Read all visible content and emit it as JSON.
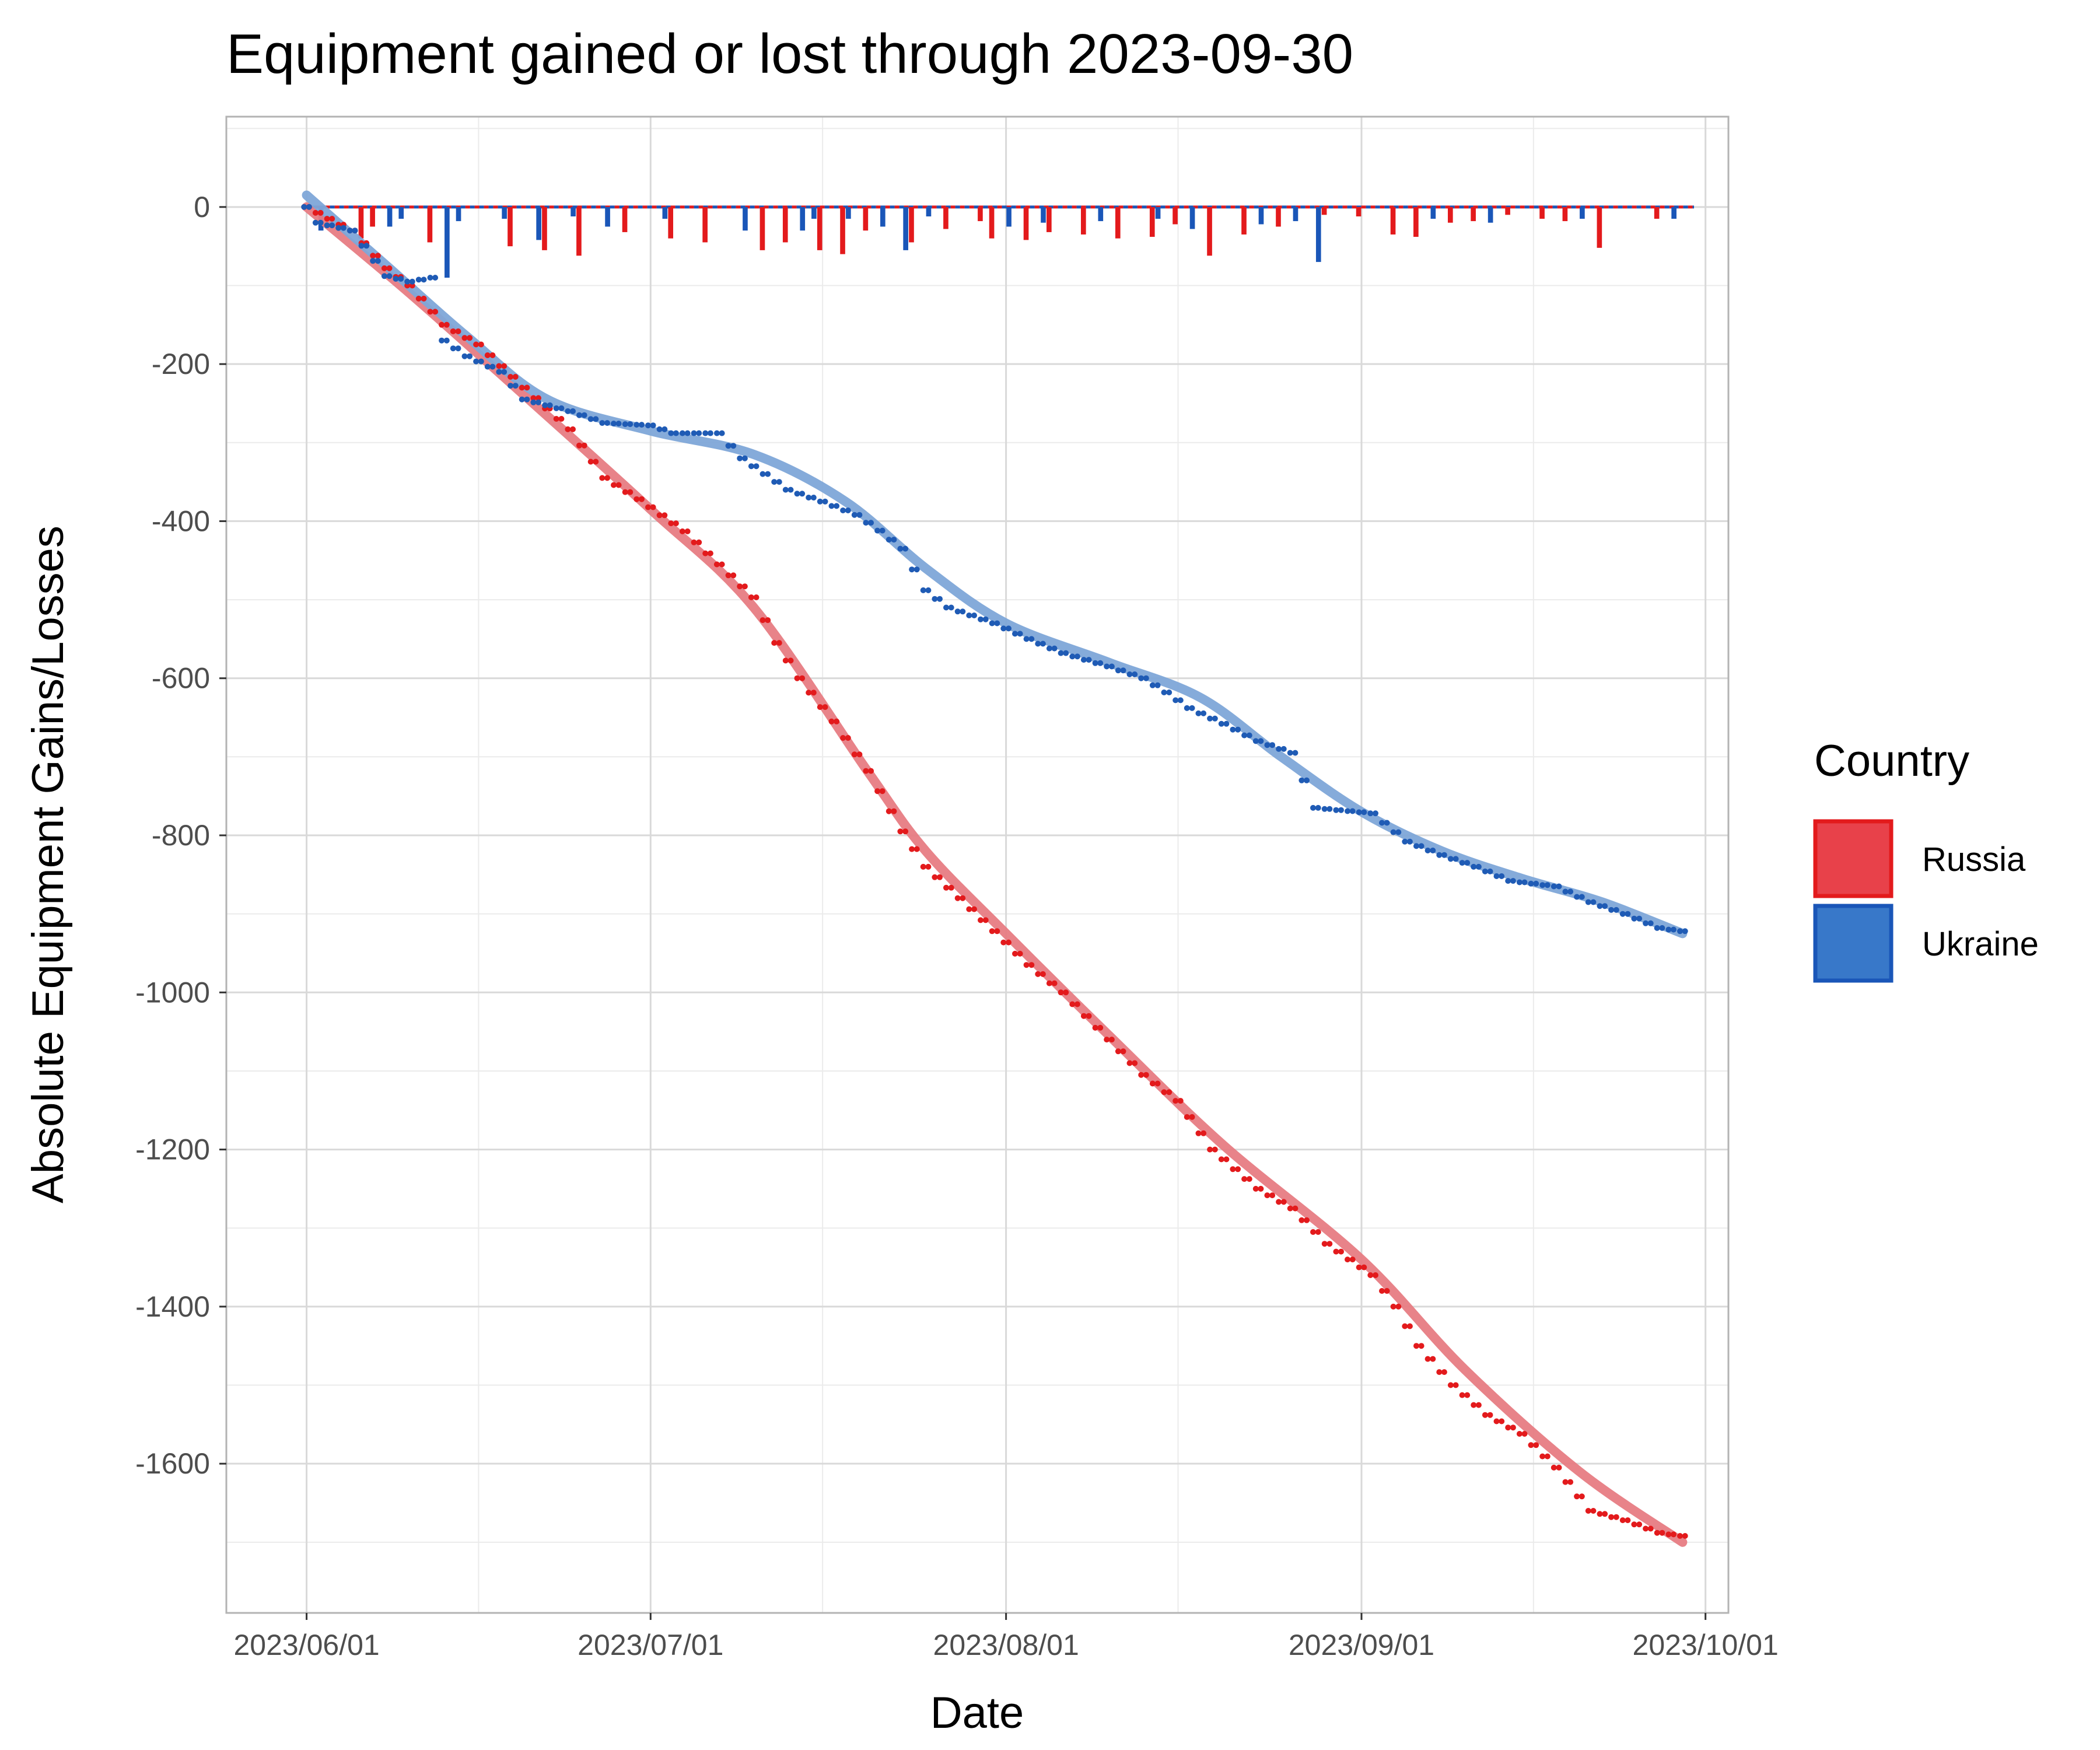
{
  "chart_data": {
    "type": "line",
    "title": "Equipment gained or lost through 2023-09-30",
    "xlabel": "Date",
    "ylabel": "Absolute Equipment Gains/Losses",
    "x_range": [
      "2023-05-25",
      "2023-10-03"
    ],
    "x_ticks": [
      "2023/06/01",
      "2023/07/01",
      "2023/08/01",
      "2023/09/01",
      "2023/10/01"
    ],
    "ylim": [
      -1790,
      115
    ],
    "y_ticks": [
      0,
      -200,
      -400,
      -600,
      -800,
      -1000,
      -1200,
      -1400,
      -1600
    ],
    "grid": true,
    "legend": {
      "title": "Country",
      "placement": "right",
      "entries": [
        {
          "name": "Russia",
          "color": "#e8414a"
        },
        {
          "name": "Ukraine",
          "color": "#3878c9"
        }
      ]
    },
    "colors": {
      "russia_point": "#e31a1c",
      "russia_bar": "#e31a1c",
      "russia_smooth": "#e77c83",
      "ukraine_point": "#1f5bb5",
      "ukraine_bar": "#1a56b8",
      "ukraine_smooth": "#7ea7d8"
    },
    "series": [
      {
        "name": "Russia",
        "cumulative_keypoints": [
          [
            "2023-06-01",
            0
          ],
          [
            "2023-06-05",
            -30
          ],
          [
            "2023-06-08",
            -78
          ],
          [
            "2023-06-10",
            -100
          ],
          [
            "2023-06-13",
            -150
          ],
          [
            "2023-06-16",
            -175
          ],
          [
            "2023-06-20",
            -230
          ],
          [
            "2023-06-24",
            -283
          ],
          [
            "2023-06-27",
            -345
          ],
          [
            "2023-06-30",
            -372
          ],
          [
            "2023-07-04",
            -413
          ],
          [
            "2023-07-07",
            -455
          ],
          [
            "2023-07-10",
            -497
          ],
          [
            "2023-07-12",
            -555
          ],
          [
            "2023-07-14",
            -600
          ],
          [
            "2023-07-17",
            -655
          ],
          [
            "2023-07-20",
            -718
          ],
          [
            "2023-07-23",
            -795
          ],
          [
            "2023-07-25",
            -840
          ],
          [
            "2023-07-28",
            -880
          ],
          [
            "2023-07-31",
            -922
          ],
          [
            "2023-08-03",
            -965
          ],
          [
            "2023-08-06",
            -1000
          ],
          [
            "2023-08-10",
            -1060
          ],
          [
            "2023-08-13",
            -1105
          ],
          [
            "2023-08-16",
            -1138
          ],
          [
            "2023-08-19",
            -1200
          ],
          [
            "2023-08-23",
            -1250
          ],
          [
            "2023-08-26",
            -1275
          ],
          [
            "2023-08-29",
            -1320
          ],
          [
            "2023-09-02",
            -1360
          ],
          [
            "2023-09-04",
            -1400
          ],
          [
            "2023-09-06",
            -1450
          ],
          [
            "2023-09-09",
            -1500
          ],
          [
            "2023-09-12",
            -1538
          ],
          [
            "2023-09-15",
            -1562
          ],
          [
            "2023-09-18",
            -1605
          ],
          [
            "2023-09-21",
            -1660
          ],
          [
            "2023-09-24",
            -1672
          ],
          [
            "2023-09-27",
            -1688
          ],
          [
            "2023-09-29",
            -1692
          ]
        ],
        "smooth_keypoints": [
          [
            "2023-06-01",
            0
          ],
          [
            "2023-06-10",
            -110
          ],
          [
            "2023-06-20",
            -240
          ],
          [
            "2023-07-01",
            -385
          ],
          [
            "2023-07-10",
            -510
          ],
          [
            "2023-07-20",
            -720
          ],
          [
            "2023-07-25",
            -820
          ],
          [
            "2023-08-01",
            -925
          ],
          [
            "2023-08-10",
            -1055
          ],
          [
            "2023-08-20",
            -1195
          ],
          [
            "2023-09-01",
            -1340
          ],
          [
            "2023-09-10",
            -1480
          ],
          [
            "2023-09-20",
            -1610
          ],
          [
            "2023-09-29",
            -1700
          ]
        ],
        "daily_changes": [
          [
            "2023-06-06",
            -40
          ],
          [
            "2023-06-07",
            -25
          ],
          [
            "2023-06-12",
            -45
          ],
          [
            "2023-06-19",
            -50
          ],
          [
            "2023-06-22",
            -55
          ],
          [
            "2023-06-25",
            -62
          ],
          [
            "2023-06-29",
            -32
          ],
          [
            "2023-07-03",
            -40
          ],
          [
            "2023-07-06",
            -45
          ],
          [
            "2023-07-11",
            -55
          ],
          [
            "2023-07-13",
            -45
          ],
          [
            "2023-07-16",
            -55
          ],
          [
            "2023-07-18",
            -60
          ],
          [
            "2023-07-20",
            -30
          ],
          [
            "2023-07-24",
            -45
          ],
          [
            "2023-07-27",
            -28
          ],
          [
            "2023-07-30",
            -18
          ],
          [
            "2023-07-31",
            -40
          ],
          [
            "2023-08-03",
            -42
          ],
          [
            "2023-08-05",
            -32
          ],
          [
            "2023-08-08",
            -35
          ],
          [
            "2023-08-11",
            -40
          ],
          [
            "2023-08-14",
            -38
          ],
          [
            "2023-08-16",
            -22
          ],
          [
            "2023-08-19",
            -62
          ],
          [
            "2023-08-22",
            -35
          ],
          [
            "2023-08-25",
            -25
          ],
          [
            "2023-08-29",
            -10
          ],
          [
            "2023-09-01",
            -12
          ],
          [
            "2023-09-04",
            -35
          ],
          [
            "2023-09-06",
            -38
          ],
          [
            "2023-09-09",
            -20
          ],
          [
            "2023-09-11",
            -18
          ],
          [
            "2023-09-14",
            -10
          ],
          [
            "2023-09-17",
            -15
          ],
          [
            "2023-09-19",
            -18
          ],
          [
            "2023-09-22",
            -52
          ],
          [
            "2023-09-27",
            -15
          ]
        ]
      },
      {
        "name": "Ukraine",
        "cumulative_keypoints": [
          [
            "2023-06-01",
            0
          ],
          [
            "2023-06-02",
            -20
          ],
          [
            "2023-06-05",
            -30
          ],
          [
            "2023-06-08",
            -88
          ],
          [
            "2023-06-10",
            -95
          ],
          [
            "2023-06-12",
            -90
          ],
          [
            "2023-06-13",
            -170
          ],
          [
            "2023-06-15",
            -190
          ],
          [
            "2023-06-18",
            -210
          ],
          [
            "2023-06-20",
            -245
          ],
          [
            "2023-06-24",
            -260
          ],
          [
            "2023-06-27",
            -275
          ],
          [
            "2023-07-01",
            -278
          ],
          [
            "2023-07-03",
            -288
          ],
          [
            "2023-07-07",
            -288
          ],
          [
            "2023-07-09",
            -320
          ],
          [
            "2023-07-11",
            -340
          ],
          [
            "2023-07-13",
            -360
          ],
          [
            "2023-07-16",
            -375
          ],
          [
            "2023-07-19",
            -392
          ],
          [
            "2023-07-21",
            -412
          ],
          [
            "2023-07-23",
            -435
          ],
          [
            "2023-07-25",
            -488
          ],
          [
            "2023-07-27",
            -510
          ],
          [
            "2023-07-31",
            -530
          ],
          [
            "2023-08-03",
            -550
          ],
          [
            "2023-08-06",
            -568
          ],
          [
            "2023-08-10",
            -585
          ],
          [
            "2023-08-13",
            -600
          ],
          [
            "2023-08-15",
            -618
          ],
          [
            "2023-08-17",
            -638
          ],
          [
            "2023-08-20",
            -658
          ],
          [
            "2023-08-23",
            -680
          ],
          [
            "2023-08-26",
            -695
          ],
          [
            "2023-08-28",
            -765
          ],
          [
            "2023-09-02",
            -772
          ],
          [
            "2023-09-05",
            -808
          ],
          [
            "2023-09-08",
            -825
          ],
          [
            "2023-09-11",
            -840
          ],
          [
            "2023-09-14",
            -858
          ],
          [
            "2023-09-18",
            -865
          ],
          [
            "2023-09-21",
            -885
          ],
          [
            "2023-09-24",
            -900
          ],
          [
            "2023-09-27",
            -918
          ],
          [
            "2023-09-29",
            -922
          ]
        ],
        "smooth_keypoints": [
          [
            "2023-06-01",
            15
          ],
          [
            "2023-06-08",
            -75
          ],
          [
            "2023-06-15",
            -165
          ],
          [
            "2023-06-22",
            -245
          ],
          [
            "2023-07-01",
            -285
          ],
          [
            "2023-07-10",
            -315
          ],
          [
            "2023-07-18",
            -375
          ],
          [
            "2023-07-25",
            -460
          ],
          [
            "2023-08-01",
            -530
          ],
          [
            "2023-08-10",
            -580
          ],
          [
            "2023-08-18",
            -625
          ],
          [
            "2023-08-25",
            -700
          ],
          [
            "2023-09-01",
            -770
          ],
          [
            "2023-09-08",
            -820
          ],
          [
            "2023-09-15",
            -855
          ],
          [
            "2023-09-22",
            -885
          ],
          [
            "2023-09-29",
            -925
          ]
        ],
        "daily_changes": [
          [
            "2023-06-02",
            -30
          ],
          [
            "2023-06-08",
            -25
          ],
          [
            "2023-06-09",
            -15
          ],
          [
            "2023-06-13",
            -90
          ],
          [
            "2023-06-14",
            -18
          ],
          [
            "2023-06-18",
            -15
          ],
          [
            "2023-06-21",
            -42
          ],
          [
            "2023-06-24",
            -12
          ],
          [
            "2023-06-27",
            -25
          ],
          [
            "2023-07-02",
            -15
          ],
          [
            "2023-07-09",
            -30
          ],
          [
            "2023-07-14",
            -30
          ],
          [
            "2023-07-15",
            -15
          ],
          [
            "2023-07-18",
            -15
          ],
          [
            "2023-07-21",
            -25
          ],
          [
            "2023-07-23",
            -55
          ],
          [
            "2023-07-25",
            -12
          ],
          [
            "2023-08-01",
            -25
          ],
          [
            "2023-08-04",
            -20
          ],
          [
            "2023-08-09",
            -18
          ],
          [
            "2023-08-14",
            -15
          ],
          [
            "2023-08-17",
            -28
          ],
          [
            "2023-08-23",
            -22
          ],
          [
            "2023-08-26",
            -18
          ],
          [
            "2023-08-28",
            -70
          ],
          [
            "2023-09-07",
            -15
          ],
          [
            "2023-09-12",
            -20
          ],
          [
            "2023-09-20",
            -15
          ],
          [
            "2023-09-28",
            -15
          ]
        ]
      }
    ]
  }
}
